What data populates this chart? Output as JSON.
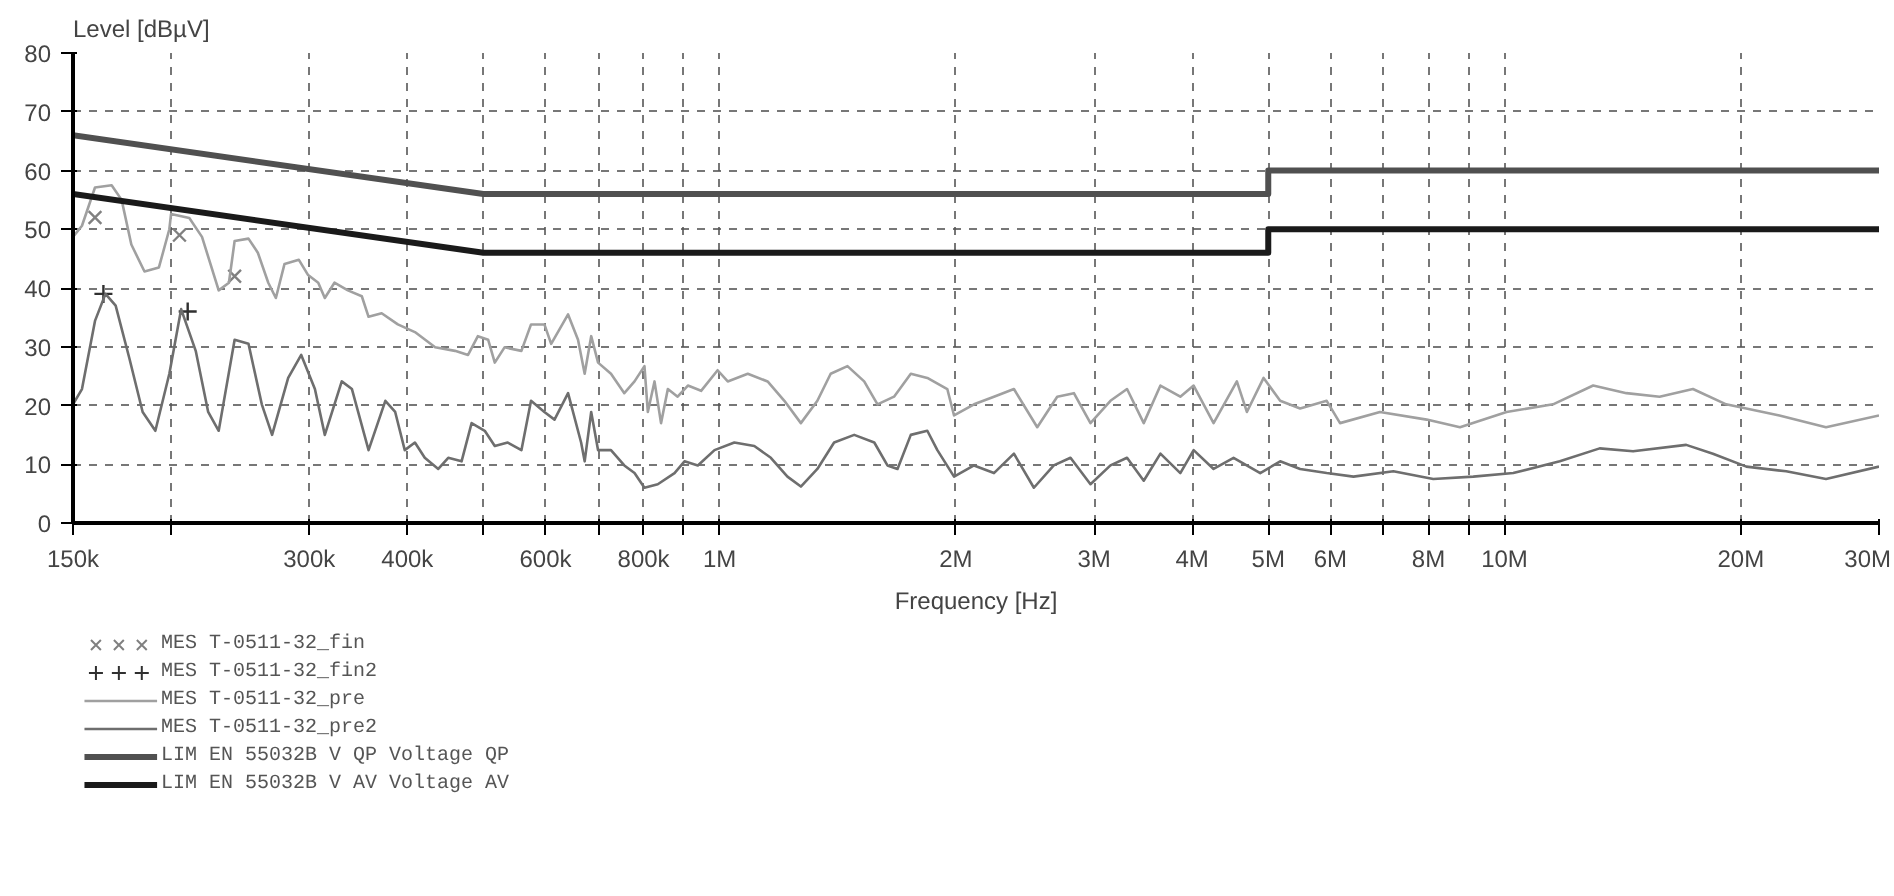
{
  "chart_data": {
    "type": "line",
    "ylabel": "Level [dBµV]",
    "xlabel": "Frequency [Hz]",
    "log": "x",
    "grid": true,
    "legend": "bottom",
    "xlim": [
      150000,
      30000000
    ],
    "ylim": [
      0,
      80
    ],
    "xticks": [
      {
        "value": 150000,
        "label": "150k"
      },
      {
        "value": 200000,
        "label": null
      },
      {
        "value": 300000,
        "label": "300k"
      },
      {
        "value": 400000,
        "label": "400k"
      },
      {
        "value": 500000,
        "label": null
      },
      {
        "value": 600000,
        "label": "600k"
      },
      {
        "value": 700000,
        "label": null
      },
      {
        "value": 800000,
        "label": "800k"
      },
      {
        "value": 900000,
        "label": null
      },
      {
        "value": 1000000,
        "label": "1M"
      },
      {
        "value": 2000000,
        "label": "2M"
      },
      {
        "value": 3000000,
        "label": "3M"
      },
      {
        "value": 4000000,
        "label": "4M"
      },
      {
        "value": 5000000,
        "label": "5M"
      },
      {
        "value": 6000000,
        "label": "6M"
      },
      {
        "value": 7000000,
        "label": null
      },
      {
        "value": 8000000,
        "label": "8M"
      },
      {
        "value": 9000000,
        "label": null
      },
      {
        "value": 10000000,
        "label": "10M"
      },
      {
        "value": 20000000,
        "label": "20M"
      },
      {
        "value": 30000000,
        "label": "30M"
      }
    ],
    "yticks": [
      0,
      10,
      20,
      30,
      40,
      50,
      60,
      70,
      80
    ],
    "series": [
      {
        "name": "MES  T-0511-32_fin",
        "type": "scatter",
        "marker": "x",
        "color": "#808080",
        "x": [
          160000,
          205000,
          241000
        ],
        "values": [
          52,
          49,
          42
        ]
      },
      {
        "name": "MES  T-0511-32_fin2",
        "type": "scatter",
        "marker": "cross",
        "color": "#303030",
        "x": [
          164000,
          210000
        ],
        "values": [
          39,
          36
        ]
      },
      {
        "name": "MES  T-0511-32_pre",
        "line_style": "solid",
        "color": "#a0a0a0",
        "x": [
          150000,
          154000,
          160000,
          168000,
          173000,
          178000,
          185000,
          193000,
          199000,
          200000,
          211000,
          219000,
          230000,
          237000,
          241000,
          251000,
          258000,
          266000,
          272000,
          279000,
          291000,
          299000,
          308000,
          314000,
          323000,
          336000,
          350000,
          357000,
          371000,
          389000,
          409000,
          434000,
          460000,
          478000,
          492000,
          507000,
          517000,
          532000,
          559000,
          575000,
          598000,
          610000,
          641000,
          660000,
          673000,
          686000,
          700000,
          727000,
          756000,
          779000,
          802000,
          810000,
          826000,
          842000,
          859000,
          884000,
          911000,
          947000,
          994000,
          1024000,
          1086000,
          1151000,
          1209000,
          1269000,
          1332000,
          1385000,
          1455000,
          1528000,
          1589000,
          1668000,
          1752000,
          1839000,
          1950000,
          1989000,
          2109000,
          2236000,
          2371000,
          2539000,
          2692000,
          2827000,
          2968000,
          3147000,
          3304000,
          3470000,
          3644000,
          3863000,
          4017000,
          4259000,
          4560000,
          4696000,
          4932000,
          5178000,
          5490000,
          5935000,
          6172000,
          6939000,
          7958000,
          8775000,
          10060000,
          11530000,
          12970000,
          14300000,
          15760000,
          17380000,
          19160000,
          22400000,
          25680000,
          30000000
        ],
        "values": [
          48.7,
          50.6,
          57.1,
          57.5,
          55,
          47.4,
          42.8,
          43.5,
          50,
          52.6,
          51.9,
          48.7,
          39.6,
          40.9,
          48,
          48.4,
          46,
          40.9,
          38.3,
          44.1,
          44.8,
          42.2,
          40.9,
          38.3,
          40.9,
          39.6,
          38.6,
          35.1,
          35.7,
          33.8,
          32.5,
          29.9,
          29.3,
          28.6,
          31.8,
          31.2,
          27.3,
          29.9,
          29.3,
          33.8,
          33.8,
          30.5,
          35.5,
          31.2,
          25.4,
          31.8,
          27.3,
          25.4,
          22.1,
          24.1,
          26.7,
          18.9,
          24.1,
          17,
          22.8,
          21.5,
          23.4,
          22.5,
          26,
          24.1,
          25.4,
          24.1,
          20.8,
          17,
          20.8,
          25.4,
          26.7,
          24.1,
          20.2,
          21.5,
          25.4,
          24.7,
          22.8,
          18.3,
          20.2,
          21.5,
          22.8,
          16.3,
          21.5,
          22.1,
          17,
          20.8,
          22.8,
          17,
          23.4,
          21.5,
          23.4,
          17,
          24.1,
          18.9,
          24.7,
          20.8,
          19.5,
          20.8,
          17,
          18.9,
          17.6,
          16.3,
          18.9,
          20.2,
          23.4,
          22.1,
          21.5,
          22.8,
          20.2,
          18.3,
          16.3,
          18.3
        ]
      },
      {
        "name": "MES  T-0511-32_pre2",
        "line_style": "solid",
        "color": "#6e6e6e",
        "x": [
          150000,
          154000,
          160000,
          165000,
          170000,
          177000,
          184000,
          191000,
          199000,
          206000,
          215000,
          223000,
          230000,
          241000,
          251000,
          261000,
          269000,
          282000,
          293000,
          305000,
          314000,
          330000,
          340000,
          357000,
          375000,
          386000,
          397000,
          409000,
          421000,
          438000,
          451000,
          469000,
          483000,
          502000,
          517000,
          537000,
          559000,
          575000,
          598000,
          616000,
          641000,
          666000,
          673000,
          686000,
          700000,
          727000,
          756000,
          779000,
          802000,
          834000,
          876000,
          902000,
          938000,
          985000,
          1044000,
          1107000,
          1162000,
          1220000,
          1269000,
          1332000,
          1399000,
          1484000,
          1574000,
          1636000,
          1685000,
          1752000,
          1839000,
          1894000,
          1989000,
          2109000,
          2236000,
          2371000,
          2514000,
          2665000,
          2799000,
          2968000,
          3147000,
          3304000,
          3470000,
          3644000,
          3863000,
          4017000,
          4259000,
          4516000,
          4884000,
          5178000,
          5490000,
          5935000,
          6420000,
          7218000,
          8114000,
          9123000,
          10260000,
          11760000,
          13220000,
          14580000,
          17040000,
          18430000,
          20330000,
          22850000,
          25680000,
          30000000
        ],
        "values": [
          20.2,
          22.8,
          34.4,
          39,
          37,
          28,
          18.9,
          15.7,
          25.4,
          36.4,
          29.3,
          18.9,
          15.7,
          31.2,
          30.5,
          20.2,
          15,
          24.7,
          28.6,
          22.8,
          15,
          24.1,
          22.8,
          12.4,
          20.8,
          18.9,
          12.4,
          13.7,
          11.1,
          9.2,
          11.1,
          10.5,
          17,
          15.7,
          13.1,
          13.7,
          12.4,
          20.8,
          18.9,
          17.6,
          22.1,
          13.7,
          10.5,
          18.9,
          12.4,
          12.4,
          9.8,
          8.5,
          6,
          6.6,
          8.5,
          10.5,
          9.8,
          12.4,
          13.7,
          13.1,
          11.1,
          7.9,
          6.2,
          9.2,
          13.7,
          15,
          13.7,
          9.8,
          9.2,
          15,
          15.7,
          12.4,
          7.9,
          9.8,
          8.5,
          11.8,
          6,
          9.8,
          11.1,
          6.6,
          9.8,
          11.1,
          7.2,
          11.8,
          8.5,
          12.4,
          9.2,
          11.1,
          8.5,
          10.5,
          9.2,
          8.5,
          7.9,
          8.8,
          7.5,
          7.9,
          8.5,
          10.5,
          12.7,
          12.2,
          13.3,
          11.8,
          9.6,
          8.8,
          7.5,
          9.6
        ]
      },
      {
        "name": "LIM  EN 55032B V QP      Voltage QP",
        "line_style": "solid",
        "color": "#505050",
        "x": [
          150000,
          500000,
          5000000,
          5000000,
          30000000
        ],
        "values": [
          66,
          56,
          56,
          60,
          60
        ]
      },
      {
        "name": "LIM  EN 55032B V AV      Voltage AV",
        "line_style": "solid",
        "color": "#1a1a1a",
        "x": [
          150000,
          500000,
          5000000,
          5000000,
          30000000
        ],
        "values": [
          56,
          46,
          46,
          50,
          50
        ]
      }
    ]
  }
}
